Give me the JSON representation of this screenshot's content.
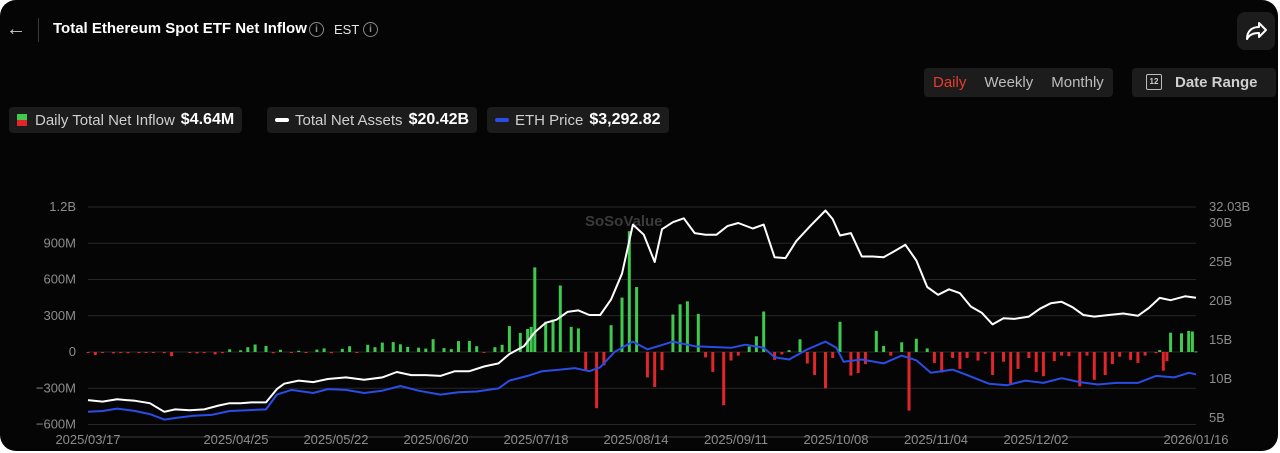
{
  "header": {
    "back_icon": "arrow-left-icon",
    "title": "Total Ethereum Spot ETF Net Inflow",
    "timezone": "EST",
    "share_icon": "share-icon"
  },
  "controls": {
    "periods": [
      "Daily",
      "Weekly",
      "Monthly"
    ],
    "active_period": "Daily",
    "date_range_label": "Date Range",
    "calendar_icon_text": "12"
  },
  "legend": {
    "inflow_label": "Daily Total Net Inflow",
    "inflow_value": "$4.64M",
    "assets_label": "Total Net Assets",
    "assets_value": "$20.42B",
    "price_label": "ETH Price",
    "price_value": "$3,292.82"
  },
  "watermark": "SoSoValue",
  "colors": {
    "positive": "#3fc94f",
    "negative": "#e0252b",
    "assets_line": "#ffffff",
    "price_line": "#2a4de6",
    "active_tab": "#ea3a2e",
    "background": "#050505"
  },
  "chart_data": {
    "type": "bar",
    "left_axis": {
      "ticks": [
        -900000000,
        -600000000,
        -300000000,
        0,
        300000000,
        600000000,
        900000000,
        1200000000
      ],
      "tick_labels": [
        "",
        "−600M",
        "−300M",
        "0",
        "300M",
        "600M",
        "900M",
        "1.2B"
      ],
      "range": [
        -680000000,
        1200000000
      ]
    },
    "right_axis": {
      "ticks": [
        5000000000,
        10000000000,
        15000000000,
        20000000000,
        25000000000,
        30000000000,
        32030000000
      ],
      "tick_labels": [
        "5B",
        "10B",
        "15B",
        "20B",
        "25B",
        "30B",
        "32.03B"
      ],
      "range": [
        5000000000,
        32030000000
      ]
    },
    "x_start": "2025-03-17",
    "x_end": "2026-01-16",
    "x_ticks": [
      "2025/03/17",
      "2025/04/25",
      "2025/05/22",
      "2025/06/20",
      "2025/07/18",
      "2025/08/14",
      "2025/09/11",
      "2025/10/08",
      "2025/11/04",
      "2025/12/02",
      "2026/01/16"
    ],
    "net_inflow": [
      [
        "2025-03-17",
        -5000000
      ],
      [
        "2025-03-19",
        -25000000
      ],
      [
        "2025-03-21",
        -8000000
      ],
      [
        "2025-03-24",
        -12000000
      ],
      [
        "2025-03-26",
        -6000000
      ],
      [
        "2025-03-28",
        -10000000
      ],
      [
        "2025-03-31",
        -8000000
      ],
      [
        "2025-04-02",
        -6000000
      ],
      [
        "2025-04-04",
        -4000000
      ],
      [
        "2025-04-07",
        -10000000
      ],
      [
        "2025-04-09",
        -35000000
      ],
      [
        "2025-04-14",
        -5000000
      ],
      [
        "2025-04-16",
        -12000000
      ],
      [
        "2025-04-18",
        -8000000
      ],
      [
        "2025-04-21",
        -20000000
      ],
      [
        "2025-04-23",
        -10000000
      ],
      [
        "2025-04-25",
        22000000
      ],
      [
        "2025-04-28",
        14000000
      ],
      [
        "2025-04-30",
        40000000
      ],
      [
        "2025-05-02",
        62000000
      ],
      [
        "2025-05-05",
        50000000
      ],
      [
        "2025-05-07",
        -10000000
      ],
      [
        "2025-05-09",
        18000000
      ],
      [
        "2025-05-12",
        -4000000
      ],
      [
        "2025-05-14",
        10000000
      ],
      [
        "2025-05-16",
        -6000000
      ],
      [
        "2025-05-19",
        20000000
      ],
      [
        "2025-05-21",
        30000000
      ],
      [
        "2025-05-23",
        -10000000
      ],
      [
        "2025-05-26",
        26000000
      ],
      [
        "2025-05-28",
        48000000
      ],
      [
        "2025-05-30",
        -8000000
      ],
      [
        "2025-06-02",
        60000000
      ],
      [
        "2025-06-04",
        40000000
      ],
      [
        "2025-06-06",
        78000000
      ],
      [
        "2025-06-09",
        82000000
      ],
      [
        "2025-06-11",
        64000000
      ],
      [
        "2025-06-13",
        42000000
      ],
      [
        "2025-06-16",
        36000000
      ],
      [
        "2025-06-18",
        28000000
      ],
      [
        "2025-06-20",
        106000000
      ],
      [
        "2025-06-23",
        32000000
      ],
      [
        "2025-06-25",
        24000000
      ],
      [
        "2025-06-27",
        90000000
      ],
      [
        "2025-06-30",
        92000000
      ],
      [
        "2025-07-02",
        48000000
      ],
      [
        "2025-07-04",
        -8000000
      ],
      [
        "2025-07-07",
        40000000
      ],
      [
        "2025-07-09",
        60000000
      ],
      [
        "2025-07-11",
        214000000
      ],
      [
        "2025-07-14",
        158000000
      ],
      [
        "2025-07-16",
        190000000
      ],
      [
        "2025-07-17",
        208000000
      ],
      [
        "2025-07-18",
        700000000
      ],
      [
        "2025-07-21",
        250000000
      ],
      [
        "2025-07-23",
        268000000
      ],
      [
        "2025-07-25",
        550000000
      ],
      [
        "2025-07-28",
        208000000
      ],
      [
        "2025-07-30",
        195000000
      ],
      [
        "2025-08-01",
        -155000000
      ],
      [
        "2025-08-04",
        -465000000
      ],
      [
        "2025-08-06",
        -110000000
      ],
      [
        "2025-08-08",
        222000000
      ],
      [
        "2025-08-11",
        450000000
      ],
      [
        "2025-08-13",
        1000000000
      ],
      [
        "2025-08-15",
        538000000
      ],
      [
        "2025-08-18",
        -210000000
      ],
      [
        "2025-08-20",
        -290000000
      ],
      [
        "2025-08-22",
        -150000000
      ],
      [
        "2025-08-25",
        310000000
      ],
      [
        "2025-08-27",
        395000000
      ],
      [
        "2025-08-29",
        420000000
      ],
      [
        "2025-09-01",
        315000000
      ],
      [
        "2025-09-03",
        -45000000
      ],
      [
        "2025-09-05",
        -165000000
      ],
      [
        "2025-09-08",
        -440000000
      ],
      [
        "2025-09-10",
        -70000000
      ],
      [
        "2025-09-12",
        -30000000
      ],
      [
        "2025-09-15",
        45000000
      ],
      [
        "2025-09-17",
        130000000
      ],
      [
        "2025-09-19",
        335000000
      ],
      [
        "2025-09-22",
        -65000000
      ],
      [
        "2025-09-24",
        -20000000
      ],
      [
        "2025-09-26",
        15000000
      ],
      [
        "2025-09-29",
        105000000
      ],
      [
        "2025-10-01",
        -95000000
      ],
      [
        "2025-10-03",
        -190000000
      ],
      [
        "2025-10-06",
        -300000000
      ],
      [
        "2025-10-08",
        -50000000
      ],
      [
        "2025-10-10",
        250000000
      ],
      [
        "2025-10-13",
        -195000000
      ],
      [
        "2025-10-15",
        -175000000
      ],
      [
        "2025-10-17",
        -100000000
      ],
      [
        "2025-10-20",
        175000000
      ],
      [
        "2025-10-22",
        50000000
      ],
      [
        "2025-10-24",
        -30000000
      ],
      [
        "2025-10-27",
        80000000
      ],
      [
        "2025-10-29",
        -485000000
      ],
      [
        "2025-10-31",
        110000000
      ],
      [
        "2025-11-03",
        30000000
      ],
      [
        "2025-11-05",
        -90000000
      ],
      [
        "2025-11-07",
        -170000000
      ],
      [
        "2025-11-10",
        -50000000
      ],
      [
        "2025-11-12",
        -140000000
      ],
      [
        "2025-11-14",
        -50000000
      ],
      [
        "2025-11-17",
        -70000000
      ],
      [
        "2025-11-19",
        -15000000
      ],
      [
        "2025-11-21",
        -190000000
      ],
      [
        "2025-11-24",
        -80000000
      ],
      [
        "2025-11-26",
        -260000000
      ],
      [
        "2025-11-28",
        -140000000
      ],
      [
        "2025-12-01",
        -50000000
      ],
      [
        "2025-12-03",
        -165000000
      ],
      [
        "2025-12-05",
        -200000000
      ],
      [
        "2025-12-08",
        -75000000
      ],
      [
        "2025-12-10",
        -30000000
      ],
      [
        "2025-12-12",
        -35000000
      ],
      [
        "2025-12-15",
        -285000000
      ],
      [
        "2025-12-17",
        -30000000
      ],
      [
        "2025-12-19",
        -230000000
      ],
      [
        "2025-12-22",
        -190000000
      ],
      [
        "2025-12-24",
        -100000000
      ],
      [
        "2025-12-26",
        -40000000
      ],
      [
        "2025-12-29",
        -65000000
      ],
      [
        "2025-12-31",
        -90000000
      ],
      [
        "2026-01-02",
        -30000000
      ],
      [
        "2026-01-05",
        -10000000
      ],
      [
        "2026-01-06",
        15000000
      ],
      [
        "2026-01-07",
        -155000000
      ],
      [
        "2026-01-08",
        -75000000
      ],
      [
        "2026-01-09",
        160000000
      ],
      [
        "2026-01-12",
        155000000
      ],
      [
        "2026-01-14",
        175000000
      ],
      [
        "2026-01-15",
        170000000
      ],
      [
        "2026-01-16",
        4640000
      ]
    ],
    "total_net_assets": [
      [
        "2025-03-17",
        7300000000
      ],
      [
        "2025-03-21",
        7100000000
      ],
      [
        "2025-03-25",
        7400000000
      ],
      [
        "2025-03-30",
        7200000000
      ],
      [
        "2025-04-03",
        6900000000
      ],
      [
        "2025-04-07",
        5800000000
      ],
      [
        "2025-04-10",
        6100000000
      ],
      [
        "2025-04-14",
        6000000000
      ],
      [
        "2025-04-18",
        6100000000
      ],
      [
        "2025-04-22",
        6600000000
      ],
      [
        "2025-04-25",
        6900000000
      ],
      [
        "2025-04-28",
        6900000000
      ],
      [
        "2025-05-01",
        7000000000
      ],
      [
        "2025-05-05",
        7000000000
      ],
      [
        "2025-05-08",
        8700000000
      ],
      [
        "2025-05-10",
        9400000000
      ],
      [
        "2025-05-14",
        9800000000
      ],
      [
        "2025-05-18",
        9600000000
      ],
      [
        "2025-05-22",
        10000000000
      ],
      [
        "2025-05-27",
        10200000000
      ],
      [
        "2025-06-01",
        9900000000
      ],
      [
        "2025-06-06",
        10200000000
      ],
      [
        "2025-06-10",
        10900000000
      ],
      [
        "2025-06-14",
        10500000000
      ],
      [
        "2025-06-18",
        10500000000
      ],
      [
        "2025-06-22",
        10400000000
      ],
      [
        "2025-06-26",
        11000000000
      ],
      [
        "2025-06-30",
        11000000000
      ],
      [
        "2025-07-04",
        11600000000
      ],
      [
        "2025-07-08",
        12000000000
      ],
      [
        "2025-07-11",
        13200000000
      ],
      [
        "2025-07-15",
        14200000000
      ],
      [
        "2025-07-18",
        16000000000
      ],
      [
        "2025-07-21",
        17200000000
      ],
      [
        "2025-07-24",
        17600000000
      ],
      [
        "2025-07-27",
        18600000000
      ],
      [
        "2025-07-30",
        18800000000
      ],
      [
        "2025-08-02",
        18200000000
      ],
      [
        "2025-08-05",
        18200000000
      ],
      [
        "2025-08-08",
        20200000000
      ],
      [
        "2025-08-11",
        23500000000
      ],
      [
        "2025-08-14",
        29800000000
      ],
      [
        "2025-08-17",
        28500000000
      ],
      [
        "2025-08-20",
        25000000000
      ],
      [
        "2025-08-22",
        29200000000
      ],
      [
        "2025-08-25",
        30100000000
      ],
      [
        "2025-08-28",
        30600000000
      ],
      [
        "2025-08-31",
        28700000000
      ],
      [
        "2025-09-03",
        28500000000
      ],
      [
        "2025-09-06",
        28500000000
      ],
      [
        "2025-09-09",
        29600000000
      ],
      [
        "2025-09-12",
        30000000000
      ],
      [
        "2025-09-16",
        29300000000
      ],
      [
        "2025-09-19",
        29800000000
      ],
      [
        "2025-09-22",
        25600000000
      ],
      [
        "2025-09-25",
        25500000000
      ],
      [
        "2025-09-28",
        27700000000
      ],
      [
        "2025-10-02",
        29700000000
      ],
      [
        "2025-10-06",
        31600000000
      ],
      [
        "2025-10-08",
        30500000000
      ],
      [
        "2025-10-10",
        28400000000
      ],
      [
        "2025-10-13",
        28700000000
      ],
      [
        "2025-10-16",
        25700000000
      ],
      [
        "2025-10-19",
        25700000000
      ],
      [
        "2025-10-22",
        25600000000
      ],
      [
        "2025-10-25",
        26400000000
      ],
      [
        "2025-10-28",
        27200000000
      ],
      [
        "2025-10-31",
        25200000000
      ],
      [
        "2025-11-03",
        21800000000
      ],
      [
        "2025-11-06",
        20800000000
      ],
      [
        "2025-11-09",
        21500000000
      ],
      [
        "2025-11-12",
        21000000000
      ],
      [
        "2025-11-15",
        19300000000
      ],
      [
        "2025-11-18",
        18500000000
      ],
      [
        "2025-11-21",
        17000000000
      ],
      [
        "2025-11-24",
        17800000000
      ],
      [
        "2025-11-27",
        17700000000
      ],
      [
        "2025-12-01",
        18000000000
      ],
      [
        "2025-12-04",
        19000000000
      ],
      [
        "2025-12-07",
        19700000000
      ],
      [
        "2025-12-10",
        19900000000
      ],
      [
        "2025-12-13",
        19200000000
      ],
      [
        "2025-12-16",
        18200000000
      ],
      [
        "2025-12-19",
        18000000000
      ],
      [
        "2025-12-23",
        18200000000
      ],
      [
        "2025-12-27",
        18400000000
      ],
      [
        "2025-12-31",
        18100000000
      ],
      [
        "2026-01-03",
        19100000000
      ],
      [
        "2026-01-06",
        20400000000
      ],
      [
        "2026-01-09",
        20100000000
      ],
      [
        "2026-01-13",
        20600000000
      ],
      [
        "2026-01-16",
        20420000000
      ]
    ],
    "eth_price_axis_scale": [
      [
        "2025-03-17",
        5800000000
      ],
      [
        "2025-03-21",
        5900000000
      ],
      [
        "2025-03-25",
        6200000000
      ],
      [
        "2025-03-30",
        5900000000
      ],
      [
        "2025-04-03",
        5500000000
      ],
      [
        "2025-04-07",
        4800000000
      ],
      [
        "2025-04-10",
        5000000000
      ],
      [
        "2025-04-15",
        5300000000
      ],
      [
        "2025-04-20",
        5400000000
      ],
      [
        "2025-04-25",
        5900000000
      ],
      [
        "2025-04-30",
        6000000000
      ],
      [
        "2025-05-05",
        6100000000
      ],
      [
        "2025-05-08",
        8000000000
      ],
      [
        "2025-05-12",
        8600000000
      ],
      [
        "2025-05-18",
        8200000000
      ],
      [
        "2025-05-22",
        8700000000
      ],
      [
        "2025-05-27",
        8600000000
      ],
      [
        "2025-06-01",
        8200000000
      ],
      [
        "2025-06-06",
        8500000000
      ],
      [
        "2025-06-11",
        9100000000
      ],
      [
        "2025-06-16",
        8500000000
      ],
      [
        "2025-06-22",
        8000000000
      ],
      [
        "2025-06-27",
        8300000000
      ],
      [
        "2025-07-02",
        8400000000
      ],
      [
        "2025-07-08",
        8800000000
      ],
      [
        "2025-07-11",
        9800000000
      ],
      [
        "2025-07-16",
        10400000000
      ],
      [
        "2025-07-20",
        11000000000
      ],
      [
        "2025-07-25",
        11200000000
      ],
      [
        "2025-07-29",
        11400000000
      ],
      [
        "2025-08-02",
        11000000000
      ],
      [
        "2025-08-05",
        11500000000
      ],
      [
        "2025-08-09",
        13500000000
      ],
      [
        "2025-08-14",
        14800000000
      ],
      [
        "2025-08-18",
        13800000000
      ],
      [
        "2025-08-21",
        14200000000
      ],
      [
        "2025-08-25",
        14800000000
      ],
      [
        "2025-08-31",
        14200000000
      ],
      [
        "2025-09-05",
        14100000000
      ],
      [
        "2025-09-10",
        14000000000
      ],
      [
        "2025-09-14",
        14400000000
      ],
      [
        "2025-09-19",
        14000000000
      ],
      [
        "2025-09-22",
        12800000000
      ],
      [
        "2025-09-26",
        12500000000
      ],
      [
        "2025-10-01",
        13800000000
      ],
      [
        "2025-10-06",
        14800000000
      ],
      [
        "2025-10-09",
        14000000000
      ],
      [
        "2025-10-11",
        12200000000
      ],
      [
        "2025-10-16",
        12500000000
      ],
      [
        "2025-10-22",
        12000000000
      ],
      [
        "2025-10-27",
        13000000000
      ],
      [
        "2025-10-31",
        12400000000
      ],
      [
        "2025-11-04",
        10800000000
      ],
      [
        "2025-11-10",
        11200000000
      ],
      [
        "2025-11-14",
        10500000000
      ],
      [
        "2025-11-20",
        9400000000
      ],
      [
        "2025-11-25",
        9200000000
      ],
      [
        "2025-11-30",
        9800000000
      ],
      [
        "2025-12-05",
        9500000000
      ],
      [
        "2025-12-10",
        10100000000
      ],
      [
        "2025-12-15",
        9600000000
      ],
      [
        "2025-12-20",
        9300000000
      ],
      [
        "2025-12-25",
        9500000000
      ],
      [
        "2025-12-31",
        9500000000
      ],
      [
        "2026-01-05",
        10400000000
      ],
      [
        "2026-01-10",
        10200000000
      ],
      [
        "2026-01-14",
        10800000000
      ],
      [
        "2026-01-16",
        10600000000
      ]
    ]
  }
}
